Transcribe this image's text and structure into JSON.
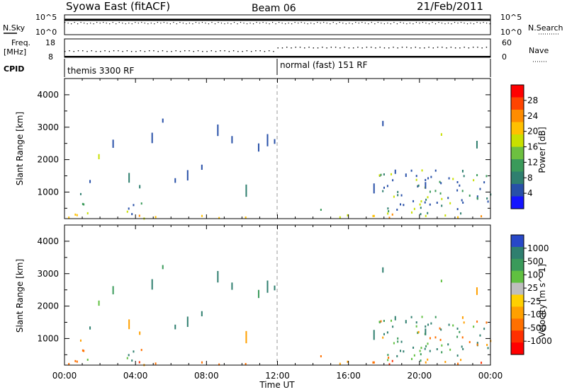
{
  "header": {
    "title": "Syowa East (fitACF)",
    "beam": "Beam 06",
    "date": "21/Feb/2011"
  },
  "panels": {
    "nsky": {
      "left_label": "N.Sky",
      "right_label": "N.Search",
      "left_ticks": [
        "10^5",
        "10^0"
      ],
      "right_ticks": [
        "10^5",
        "10^0"
      ]
    },
    "freq": {
      "left_label_1": "Freq.",
      "left_label_2": "[MHz]",
      "left_ticks": [
        "18",
        "8"
      ],
      "right_label": "Nave",
      "right_ticks": [
        "60",
        "0"
      ]
    },
    "cpid": {
      "label": "CPID",
      "segments": [
        {
          "name": "themis 3300 RF",
          "start_hour": 0
        },
        {
          "name": "normal (fast) 151 RF",
          "start_hour": 12
        }
      ]
    }
  },
  "colorbars": {
    "power": {
      "label": "Power [dB]",
      "ticks": [
        "28",
        "24",
        "20",
        "16",
        "12",
        "8",
        "4"
      ],
      "colors": [
        "#ff0000",
        "#ff4400",
        "#ff8c00",
        "#ffc000",
        "#c8e000",
        "#6dc040",
        "#3a9a5a",
        "#2f7f6f",
        "#2850a8",
        "#1414ff"
      ]
    },
    "velocity": {
      "label": "Velocity [m s^-1]",
      "ticks": [
        "1000",
        "500",
        "100",
        "25",
        "-25",
        "-100",
        "-500",
        "-1000"
      ],
      "colors": [
        "#2848c8",
        "#2f7f6f",
        "#3a9a5a",
        "#60c040",
        "#bebebe",
        "#ffd000",
        "#ffa000",
        "#ff7000",
        "#ff3000",
        "#ff0000"
      ]
    }
  },
  "chart_data": [
    {
      "type": "heatmap",
      "name": "power",
      "ylabel": "Slant Range [km]",
      "xlabel": "Time UT",
      "x_ticks": [
        "00:00",
        "04:00",
        "08:00",
        "12:00",
        "16:00",
        "20:00",
        "00:00"
      ],
      "y_ticks": [
        "1000",
        "2000",
        "3000",
        "4000"
      ],
      "xlim": [
        0,
        24
      ],
      "ylim": [
        180,
        4500
      ],
      "colorbar_ticks": [
        4,
        8,
        12,
        16,
        20,
        24,
        28
      ]
    },
    {
      "type": "heatmap",
      "name": "velocity",
      "ylabel": "Slant Range [km]",
      "xlabel": "Time UT",
      "x_ticks": [
        "00:00",
        "04:00",
        "08:00",
        "12:00",
        "16:00",
        "20:00",
        "00:00"
      ],
      "y_ticks": [
        "1000",
        "2000",
        "3000",
        "4000"
      ],
      "xlim": [
        0,
        24
      ],
      "ylim": [
        180,
        4500
      ],
      "colorbar_ticks": [
        -1000,
        -500,
        -100,
        -25,
        25,
        100,
        500,
        1000
      ]
    }
  ],
  "xaxis": {
    "label": "Time UT",
    "ticks": [
      "00:00",
      "04:00",
      "08:00",
      "12:00",
      "16:00",
      "20:00",
      "00:00"
    ]
  }
}
